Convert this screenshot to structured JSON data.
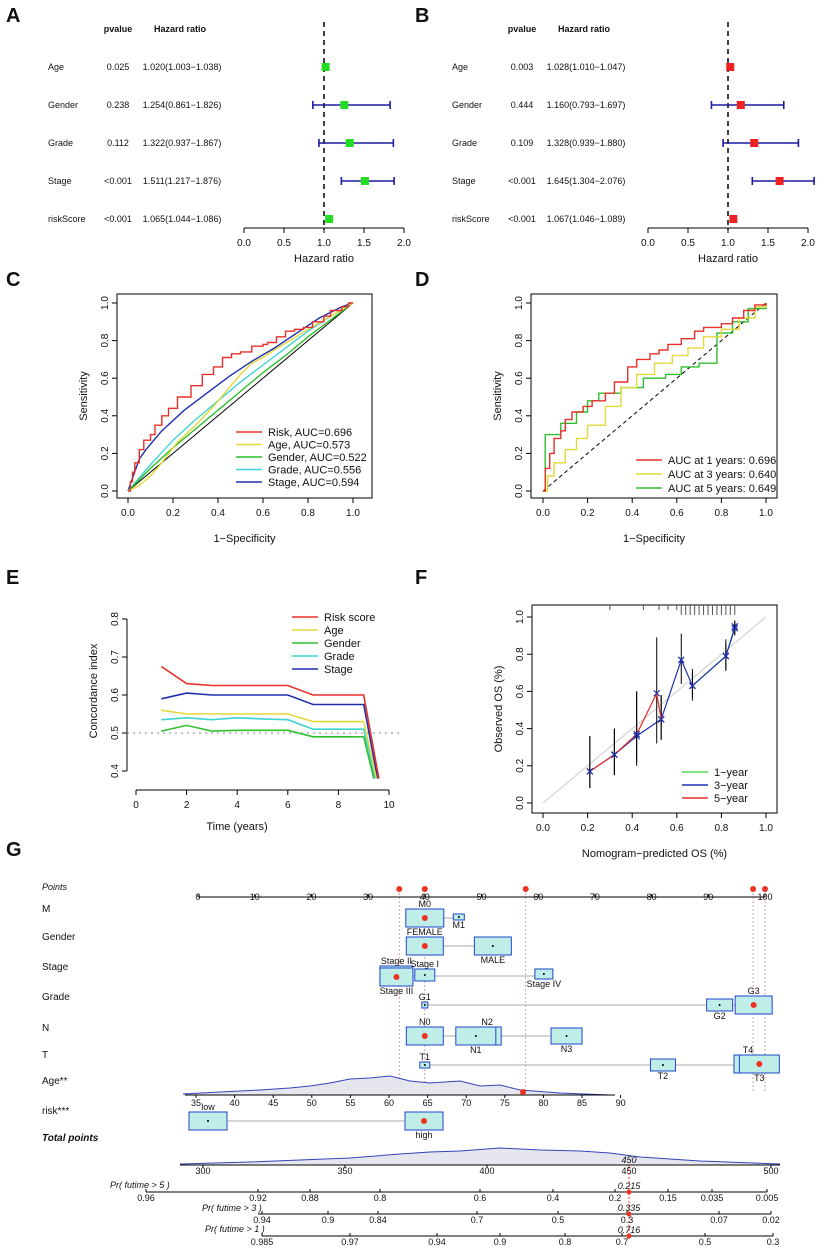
{
  "chart_data": [
    {
      "panel": "A",
      "type": "forest",
      "header_pvalue": "pvalue",
      "header_hr": "Hazard ratio",
      "xlabel": "Hazard ratio",
      "xlim": [
        0,
        2.0
      ],
      "ticks": [
        "0.0",
        "0.5",
        "1.0",
        "1.5",
        "2.0"
      ],
      "ref_line": 1,
      "marker_color": "#22dd22",
      "rows": [
        {
          "label": "Age",
          "pvalue": "0.025",
          "hr_text": "1.020(1.003−1.038)",
          "hr": 1.02,
          "low": 1.003,
          "high": 1.038
        },
        {
          "label": "Gender",
          "pvalue": "0.238",
          "hr_text": "1.254(0.861−1.826)",
          "hr": 1.254,
          "low": 0.861,
          "high": 1.826
        },
        {
          "label": "Grade",
          "pvalue": "0.112",
          "hr_text": "1.322(0.937−1.867)",
          "hr": 1.322,
          "low": 0.937,
          "high": 1.867
        },
        {
          "label": "Stage",
          "pvalue": "<0.001",
          "hr_text": "1.511(1.217−1.876)",
          "hr": 1.511,
          "low": 1.217,
          "high": 1.876
        },
        {
          "label": "riskScore",
          "pvalue": "<0.001",
          "hr_text": "1.065(1.044−1.086)",
          "hr": 1.065,
          "low": 1.044,
          "high": 1.086
        }
      ]
    },
    {
      "panel": "B",
      "type": "forest",
      "header_pvalue": "pvalue",
      "header_hr": "Hazard ratio",
      "xlabel": "Hazard ratio",
      "xlim": [
        0,
        2.0
      ],
      "ticks": [
        "0.0",
        "0.5",
        "1.0",
        "1.5",
        "2.0"
      ],
      "ref_line": 1,
      "marker_color": "#ee2222",
      "rows": [
        {
          "label": "Age",
          "pvalue": "0.003",
          "hr_text": "1.028(1.010−1.047)",
          "hr": 1.028,
          "low": 1.01,
          "high": 1.047
        },
        {
          "label": "Gender",
          "pvalue": "0.444",
          "hr_text": "1.160(0.793−1.697)",
          "hr": 1.16,
          "low": 0.793,
          "high": 1.697
        },
        {
          "label": "Grade",
          "pvalue": "0.109",
          "hr_text": "1.328(0.939−1.880)",
          "hr": 1.328,
          "low": 0.939,
          "high": 1.88
        },
        {
          "label": "Stage",
          "pvalue": "<0.001",
          "hr_text": "1.645(1.304−2.076)",
          "hr": 1.645,
          "low": 1.304,
          "high": 2.076
        },
        {
          "label": "riskScore",
          "pvalue": "<0.001",
          "hr_text": "1.067(1.046−1.089)",
          "hr": 1.067,
          "low": 1.046,
          "high": 1.089
        }
      ]
    },
    {
      "panel": "C",
      "type": "line",
      "subtype": "roc",
      "xlabel": "1−Specificity",
      "ylabel": "Sensitivity",
      "xlim": [
        0,
        1
      ],
      "ylim": [
        0,
        1
      ],
      "ticks": [
        "0.0",
        "0.2",
        "0.4",
        "0.6",
        "0.8",
        "1.0"
      ],
      "legend_position": "bottom-right",
      "series": [
        {
          "name": "Risk, AUC=0.696",
          "color": "#e8302a",
          "x": [
            0,
            0.01,
            0.02,
            0.03,
            0.05,
            0.07,
            0.1,
            0.12,
            0.15,
            0.18,
            0.22,
            0.28,
            0.33,
            0.38,
            0.42,
            0.46,
            0.5,
            0.55,
            0.6,
            0.62,
            0.66,
            0.7,
            0.74,
            0.78,
            0.82,
            0.87,
            0.9,
            0.95,
            0.98,
            1
          ],
          "y": [
            0,
            0.05,
            0.1,
            0.15,
            0.22,
            0.27,
            0.3,
            0.35,
            0.4,
            0.44,
            0.5,
            0.56,
            0.62,
            0.66,
            0.71,
            0.73,
            0.74,
            0.77,
            0.78,
            0.79,
            0.82,
            0.85,
            0.86,
            0.87,
            0.9,
            0.93,
            0.96,
            0.98,
            1,
            1
          ]
        },
        {
          "name": "Age, AUC=0.573",
          "color": "#e3d93a",
          "x": [
            0,
            0.05,
            0.1,
            0.15,
            0.22,
            0.3,
            0.38,
            0.45,
            0.5,
            0.55,
            0.6,
            0.65,
            0.72,
            0.8,
            0.9,
            1
          ],
          "y": [
            0,
            0.03,
            0.08,
            0.15,
            0.26,
            0.35,
            0.45,
            0.55,
            0.62,
            0.68,
            0.71,
            0.75,
            0.8,
            0.86,
            0.93,
            1
          ]
        },
        {
          "name": "Gender, AUC=0.522",
          "color": "#2fbf2f",
          "x": [
            0,
            0.1,
            0.2,
            0.3,
            0.4,
            0.5,
            0.6,
            0.7,
            0.8,
            0.9,
            1
          ],
          "y": [
            0,
            0.12,
            0.23,
            0.33,
            0.43,
            0.53,
            0.63,
            0.72,
            0.82,
            0.91,
            1
          ]
        },
        {
          "name": "Grade, AUC=0.556",
          "color": "#3fd3d3",
          "x": [
            0,
            0.1,
            0.2,
            0.3,
            0.4,
            0.5,
            0.6,
            0.7,
            0.8,
            0.9,
            1
          ],
          "y": [
            0,
            0.14,
            0.27,
            0.38,
            0.48,
            0.58,
            0.67,
            0.76,
            0.85,
            0.93,
            1
          ]
        },
        {
          "name": "Stage, AUC=0.594",
          "color": "#1f2fb0",
          "x": [
            0,
            0.05,
            0.08,
            0.15,
            0.25,
            0.35,
            0.45,
            0.55,
            0.65,
            0.75,
            0.85,
            0.95,
            1
          ],
          "y": [
            0,
            0.17,
            0.22,
            0.32,
            0.43,
            0.52,
            0.61,
            0.69,
            0.76,
            0.84,
            0.92,
            0.98,
            1
          ]
        }
      ]
    },
    {
      "panel": "D",
      "type": "line",
      "subtype": "roc",
      "xlabel": "1−Specificity",
      "ylabel": "Sensitivity",
      "xlim": [
        0,
        1
      ],
      "ylim": [
        0,
        1
      ],
      "ticks": [
        "0.0",
        "0.2",
        "0.4",
        "0.6",
        "0.8",
        "1.0"
      ],
      "legend_position": "bottom-right",
      "series": [
        {
          "name": "AUC at 1 years: 0.696",
          "color": "#e8302a",
          "x": [
            0,
            0.01,
            0.03,
            0.05,
            0.08,
            0.1,
            0.13,
            0.18,
            0.22,
            0.28,
            0.32,
            0.38,
            0.42,
            0.48,
            0.52,
            0.56,
            0.62,
            0.68,
            0.72,
            0.8,
            0.85,
            0.9,
            0.95,
            1
          ],
          "y": [
            0,
            0.12,
            0.2,
            0.28,
            0.32,
            0.38,
            0.42,
            0.45,
            0.48,
            0.52,
            0.58,
            0.66,
            0.7,
            0.73,
            0.75,
            0.78,
            0.81,
            0.85,
            0.87,
            0.89,
            0.92,
            0.96,
            0.99,
            1
          ]
        },
        {
          "name": "AUC at 3 years: 0.640",
          "color": "#e3d93a",
          "x": [
            0,
            0.02,
            0.05,
            0.1,
            0.15,
            0.2,
            0.28,
            0.35,
            0.42,
            0.5,
            0.58,
            0.65,
            0.72,
            0.8,
            0.88,
            0.95,
            1
          ],
          "y": [
            0,
            0.08,
            0.15,
            0.22,
            0.28,
            0.35,
            0.45,
            0.55,
            0.62,
            0.68,
            0.72,
            0.76,
            0.82,
            0.86,
            0.92,
            0.98,
            1
          ]
        },
        {
          "name": "AUC at 5 years: 0.649",
          "color": "#2fbf2f",
          "x": [
            0,
            0.01,
            0.03,
            0.08,
            0.15,
            0.2,
            0.25,
            0.35,
            0.45,
            0.55,
            0.62,
            0.7,
            0.78,
            0.85,
            0.92,
            1
          ],
          "y": [
            0,
            0.3,
            0.3,
            0.36,
            0.42,
            0.48,
            0.52,
            0.55,
            0.6,
            0.62,
            0.66,
            0.68,
            0.84,
            0.9,
            0.97,
            1
          ]
        }
      ]
    },
    {
      "panel": "E",
      "type": "line",
      "xlabel": "Time (years)",
      "ylabel": "Concordance index",
      "xlim": [
        0,
        10
      ],
      "ylim": [
        0.38,
        0.82
      ],
      "xticks": [
        "0",
        "2",
        "4",
        "6",
        "8",
        "10"
      ],
      "yticks": [
        "0.4",
        "0.5",
        "0.6",
        "0.7",
        "0.8"
      ],
      "ref_line": 0.5,
      "legend_position": "top-right",
      "series": [
        {
          "name": "Risk score",
          "color": "#e8302a",
          "x": [
            1,
            2,
            3,
            4,
            5,
            6,
            7,
            8,
            9,
            9.6
          ],
          "y": [
            0.675,
            0.63,
            0.625,
            0.625,
            0.625,
            0.625,
            0.6,
            0.6,
            0.6,
            0.38
          ]
        },
        {
          "name": "Age",
          "color": "#e3d93a",
          "x": [
            1,
            2,
            3,
            4,
            5,
            6,
            7,
            8,
            9,
            9.5
          ],
          "y": [
            0.56,
            0.55,
            0.55,
            0.55,
            0.55,
            0.55,
            0.53,
            0.53,
            0.53,
            0.38
          ]
        },
        {
          "name": "Gender",
          "color": "#2fbf2f",
          "x": [
            1,
            2,
            3,
            4,
            5,
            6,
            7,
            8,
            9,
            9.4
          ],
          "y": [
            0.505,
            0.52,
            0.505,
            0.507,
            0.507,
            0.507,
            0.49,
            0.49,
            0.49,
            0.38
          ]
        },
        {
          "name": "Grade",
          "color": "#3fd3d3",
          "x": [
            1,
            2,
            3,
            4,
            5,
            6,
            7,
            8,
            9,
            9.45
          ],
          "y": [
            0.535,
            0.54,
            0.535,
            0.54,
            0.537,
            0.535,
            0.51,
            0.51,
            0.51,
            0.38
          ]
        },
        {
          "name": "Stage",
          "color": "#1f2fb0",
          "x": [
            1,
            2,
            3,
            4,
            5,
            6,
            7,
            8,
            9,
            9.55
          ],
          "y": [
            0.59,
            0.605,
            0.6,
            0.6,
            0.6,
            0.6,
            0.575,
            0.575,
            0.575,
            0.38
          ]
        }
      ]
    },
    {
      "panel": "F",
      "type": "line",
      "subtype": "calibration",
      "xlabel": "Nomogram−predicted OS (%)",
      "ylabel": "Observed OS (%)",
      "xlim": [
        0,
        1
      ],
      "ylim": [
        0,
        1
      ],
      "ticks": [
        "0.0",
        "0.2",
        "0.4",
        "0.6",
        "0.8",
        "1.0"
      ],
      "legend_position": "bottom-right",
      "series": [
        {
          "name": "1−year",
          "color": "#56d956",
          "x": [
            0.67,
            0.82,
            0.86
          ],
          "y": [
            0.63,
            0.79,
            0.95
          ],
          "lo": [
            0.57,
            0.71,
            0.91
          ],
          "hi": [
            0.7,
            0.88,
            0.98
          ]
        },
        {
          "name": "3−year",
          "color": "#1f2fb0",
          "x": [
            0.21,
            0.32,
            0.42,
            0.53,
            0.62,
            0.67,
            0.82,
            0.86
          ],
          "y": [
            0.17,
            0.26,
            0.36,
            0.45,
            0.77,
            0.63,
            0.79,
            0.94
          ],
          "lo": [
            0.08,
            0.15,
            0.2,
            0.34,
            0.64,
            0.55,
            0.72,
            0.9
          ],
          "hi": [
            0.36,
            0.4,
            0.6,
            0.58,
            0.91,
            0.72,
            0.86,
            0.98
          ]
        },
        {
          "name": "5−year",
          "color": "#e8302a",
          "x": [
            0.21,
            0.32,
            0.42,
            0.51,
            0.53
          ],
          "y": [
            0.17,
            0.26,
            0.37,
            0.59,
            0.45
          ],
          "lo": [
            0.08,
            0.15,
            0.22,
            0.32,
            0.34
          ],
          "hi": [
            0.36,
            0.4,
            0.6,
            0.89,
            0.58
          ]
        }
      ]
    },
    {
      "panel": "G",
      "type": "nomogram",
      "points_label": "Points",
      "points_ticks": [
        "0",
        "10",
        "20",
        "30",
        "40",
        "50",
        "60",
        "70",
        "80",
        "90",
        "100"
      ],
      "variables": [
        {
          "name": "M",
          "levels": [
            {
              "label": "M0",
              "pts": 40
            },
            {
              "label": "M1",
              "pts": 46
            }
          ]
        },
        {
          "name": "Gender",
          "levels": [
            {
              "label": "FEMALE",
              "pts": 40
            },
            {
              "label": "MALE",
              "pts": 52
            }
          ]
        },
        {
          "name": "Stage",
          "levels": [
            {
              "label": "Stage II",
              "pts": 35
            },
            {
              "label": "Stage I",
              "pts": 40
            },
            {
              "label": "Stage III",
              "pts": 35
            },
            {
              "label": "Stage IV",
              "pts": 61
            }
          ]
        },
        {
          "name": "Grade",
          "levels": [
            {
              "label": "G1",
              "pts": 40
            },
            {
              "label": "G2",
              "pts": 92
            },
            {
              "label": "G3",
              "pts": 98
            }
          ]
        },
        {
          "name": "N",
          "levels": [
            {
              "label": "N0",
              "pts": 40
            },
            {
              "label": "N2",
              "pts": 51
            },
            {
              "label": "N1",
              "pts": 49
            },
            {
              "label": "N3",
              "pts": 65
            }
          ]
        },
        {
          "name": "T",
          "levels": [
            {
              "label": "T1",
              "pts": 40
            },
            {
              "label": "T2",
              "pts": 82
            },
            {
              "label": "T4",
              "pts": 97
            },
            {
              "label": "T3",
              "pts": 99
            }
          ]
        }
      ],
      "age_label": "Age**",
      "age_ticks": [
        "35",
        "40",
        "45",
        "50",
        "55",
        "60",
        "65",
        "70",
        "75",
        "80",
        "85",
        "90"
      ],
      "risk_label": "risk***",
      "risk_levels": [
        {
          "label": "low",
          "pts": 0
        },
        {
          "label": "high",
          "pts": 40
        }
      ],
      "total_label": "Total points",
      "total_ticks": [
        "300",
        "350",
        "400",
        "450",
        "500"
      ],
      "total_value": "450",
      "selected_points": [
        35.5,
        40,
        57.8,
        97.9,
        100
      ],
      "probability_rows": [
        {
          "label": "Pr( futime > 5 )",
          "value": "0.215",
          "ticks": [
            "0.96",
            "0.92",
            "0.88",
            "0.8",
            "0.6",
            "0.4",
            "0.2",
            "0.15",
            "0.035",
            "0.005"
          ]
        },
        {
          "label": "Pr( futime > 3 )",
          "value": "0.335",
          "ticks": [
            "0.94",
            "0.9",
            "0.84",
            "0.7",
            "0.5",
            "0.3",
            "0.07",
            "0.02"
          ]
        },
        {
          "label": "Pr( futime > 1 )",
          "value": "0.716",
          "ticks": [
            "0.985",
            "0.97",
            "0.94",
            "0.9",
            "0.8",
            "0.7",
            "0.5",
            "0.3"
          ]
        }
      ]
    }
  ],
  "panel_letters": [
    "A",
    "B",
    "C",
    "D",
    "E",
    "F",
    "G"
  ]
}
